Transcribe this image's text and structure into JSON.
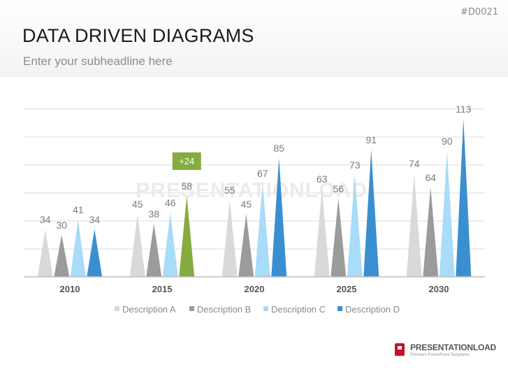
{
  "slide": {
    "id": "#D0021",
    "title": "DATA DRIVEN DIAGRAMS",
    "subtitle": "Enter your subheadline here"
  },
  "branding": {
    "name": "PRESENTATIONLOAD",
    "tagline": "Premium PowerPoint Templates",
    "watermark": "PRESENTATIONLOAD"
  },
  "chart_data": {
    "type": "bar",
    "bar_shape": "triangle",
    "categories": [
      "2010",
      "2015",
      "2020",
      "2025",
      "2030"
    ],
    "series": [
      {
        "name": "Description A",
        "color": "#d9d9d9",
        "values": [
          34,
          45,
          55,
          63,
          74
        ]
      },
      {
        "name": "Description B",
        "color": "#9b9b9b",
        "values": [
          30,
          38,
          45,
          56,
          64
        ]
      },
      {
        "name": "Description C",
        "color": "#a8dcf8",
        "values": [
          41,
          46,
          67,
          73,
          90
        ]
      },
      {
        "name": "Description D",
        "color": "#3a8fd0",
        "values": [
          34,
          58,
          85,
          91,
          113
        ]
      }
    ],
    "highlight": {
      "category": "2015",
      "series": "Description D",
      "color": "#86ac3f",
      "label": "+24"
    },
    "ylim": [
      0,
      120
    ],
    "grid": true,
    "legend_position": "bottom"
  }
}
